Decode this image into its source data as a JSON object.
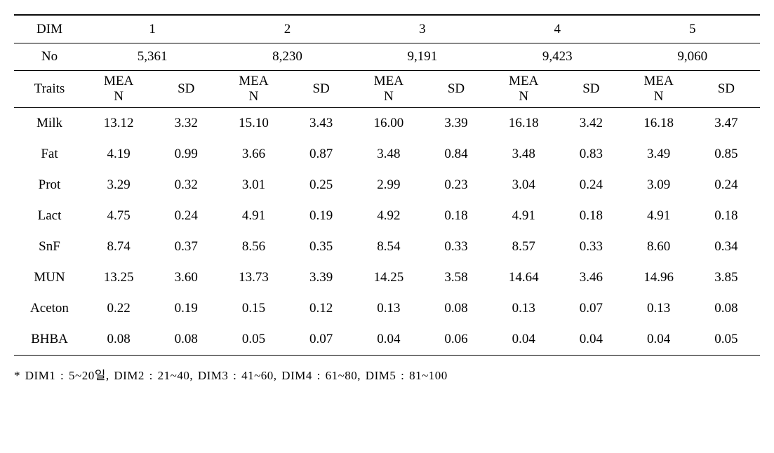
{
  "header": {
    "dim_label": "DIM",
    "no_label": "No",
    "traits_label": "Traits",
    "mean_line1": "MEA",
    "mean_line2": "N",
    "sd_label": "SD",
    "dims": [
      "1",
      "2",
      "3",
      "4",
      "5"
    ],
    "counts": [
      "5,361",
      "8,230",
      "9,191",
      "9,423",
      "9,060"
    ]
  },
  "rows": [
    {
      "trait": "Milk",
      "v": [
        "13.12",
        "3.32",
        "15.10",
        "3.43",
        "16.00",
        "3.39",
        "16.18",
        "3.42",
        "16.18",
        "3.47"
      ]
    },
    {
      "trait": "Fat",
      "v": [
        "4.19",
        "0.99",
        "3.66",
        "0.87",
        "3.48",
        "0.84",
        "3.48",
        "0.83",
        "3.49",
        "0.85"
      ]
    },
    {
      "trait": "Prot",
      "v": [
        "3.29",
        "0.32",
        "3.01",
        "0.25",
        "2.99",
        "0.23",
        "3.04",
        "0.24",
        "3.09",
        "0.24"
      ]
    },
    {
      "trait": "Lact",
      "v": [
        "4.75",
        "0.24",
        "4.91",
        "0.19",
        "4.92",
        "0.18",
        "4.91",
        "0.18",
        "4.91",
        "0.18"
      ]
    },
    {
      "trait": "SnF",
      "v": [
        "8.74",
        "0.37",
        "8.56",
        "0.35",
        "8.54",
        "0.33",
        "8.57",
        "0.33",
        "8.60",
        "0.34"
      ]
    },
    {
      "trait": "MUN",
      "v": [
        "13.25",
        "3.60",
        "13.73",
        "3.39",
        "14.25",
        "3.58",
        "14.64",
        "3.46",
        "14.96",
        "3.85"
      ]
    },
    {
      "trait": "Aceton",
      "v": [
        "0.22",
        "0.19",
        "0.15",
        "0.12",
        "0.13",
        "0.08",
        "0.13",
        "0.07",
        "0.13",
        "0.08"
      ]
    },
    {
      "trait": "BHBA",
      "v": [
        "0.08",
        "0.08",
        "0.05",
        "0.07",
        "0.04",
        "0.06",
        "0.04",
        "0.04",
        "0.04",
        "0.05"
      ]
    }
  ],
  "footnote": "* DIM1 : 5~20일, DIM2 : 21~40, DIM3 : 41~60, DIM4 : 61~80, DIM5 : 81~100"
}
